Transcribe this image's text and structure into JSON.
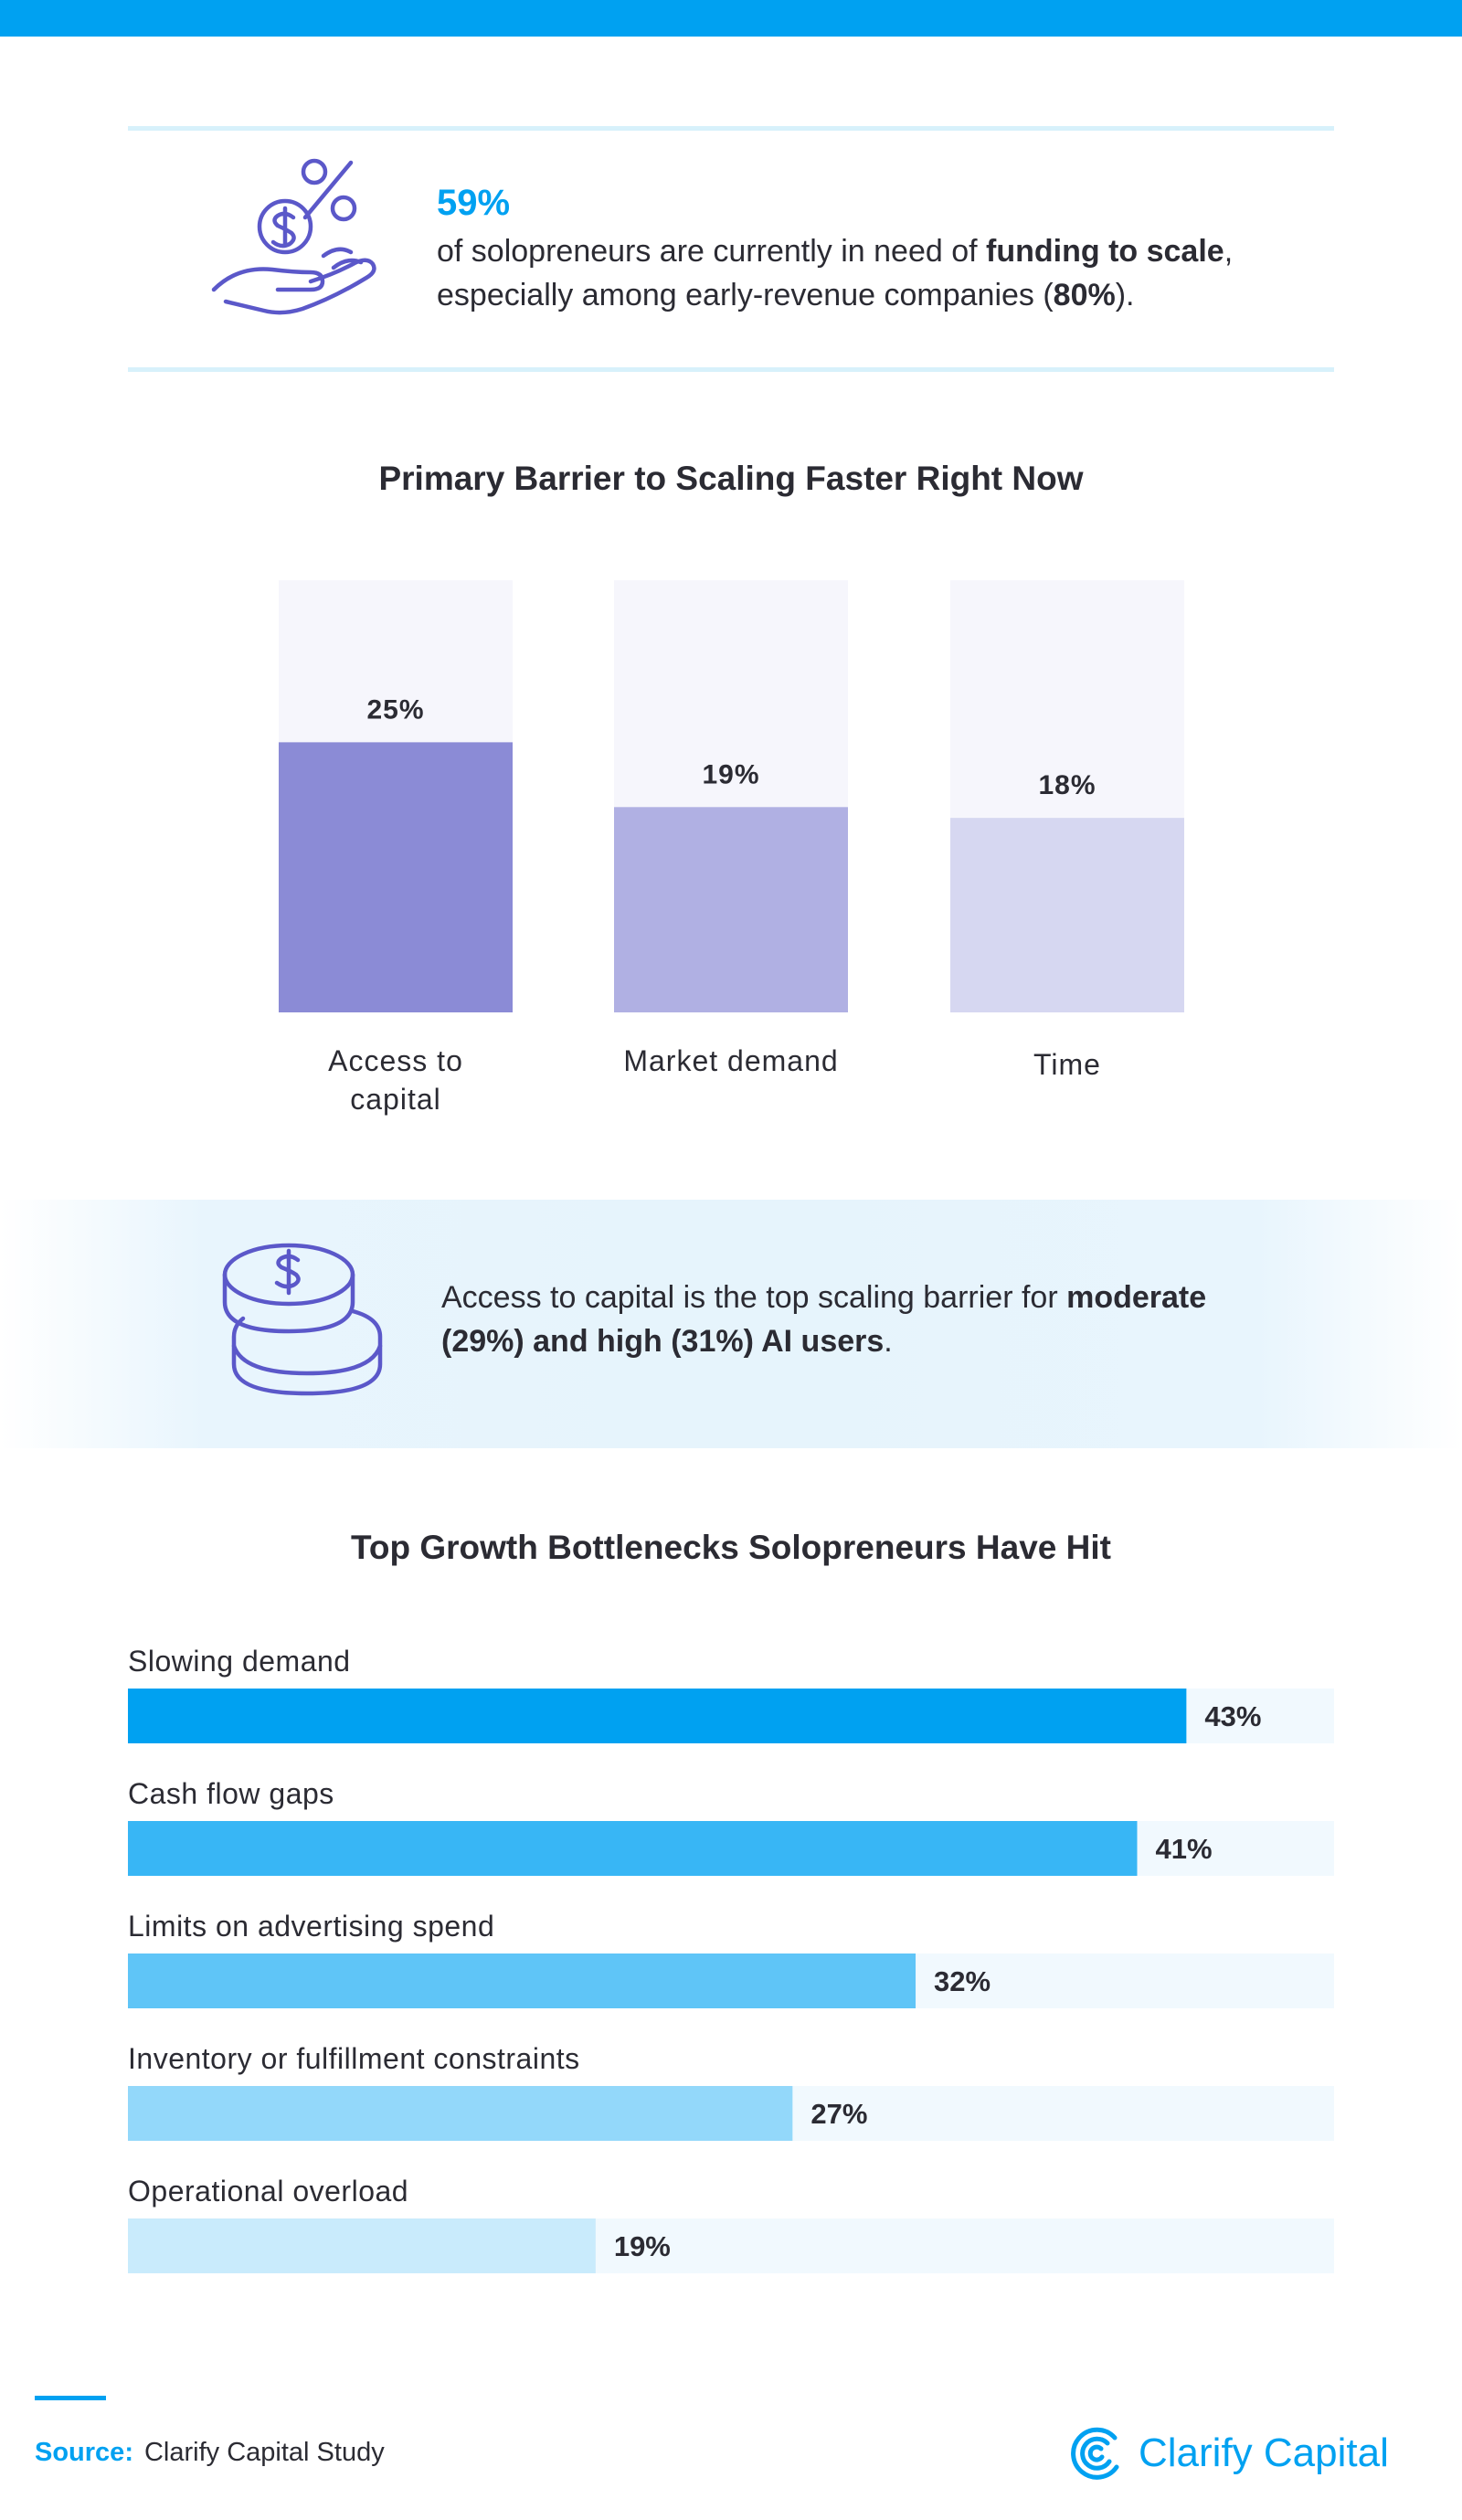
{
  "stat": {
    "percent": "59%",
    "text_plain_1": "of solopreneurs are currently in need of ",
    "text_bold_1": "funding to scale",
    "text_plain_2": ", especially among early-revenue companies (",
    "text_bold_2": "80%",
    "text_plain_3": ")."
  },
  "callout": {
    "text_plain_1": "Access to capital is the top scaling barrier for ",
    "text_bold_1": "moderate (29%) and high (31%) AI users",
    "text_plain_2": "."
  },
  "chart_data": [
    {
      "type": "bar",
      "orientation": "vertical",
      "title": "Primary Barrier to Scaling Faster Right Now",
      "categories": [
        "Access to capital",
        "Market demand",
        "Time"
      ],
      "category_lines": [
        [
          "Access to",
          "capital"
        ],
        [
          "Market demand"
        ],
        [
          "Time"
        ]
      ],
      "values": [
        25,
        19,
        18
      ],
      "value_labels": [
        "25%",
        "19%",
        "18%"
      ],
      "colors": [
        "#8b8bd6",
        "#b0b0e3",
        "#d6d7f1"
      ],
      "track_color": "#f6f6fc",
      "ylim": [
        0,
        40
      ]
    },
    {
      "type": "bar",
      "orientation": "horizontal",
      "title": "Top Growth Bottlenecks Solopreneurs Have Hit",
      "categories": [
        "Slowing demand",
        "Cash flow gaps",
        "Limits on advertising spend",
        "Inventory or fulfillment constraints",
        "Operational overload"
      ],
      "values": [
        43,
        41,
        32,
        27,
        19
      ],
      "value_labels": [
        "43%",
        "41%",
        "32%",
        "27%",
        "19%"
      ],
      "colors": [
        "#00a1f1",
        "#38b6f5",
        "#5fc5f7",
        "#93d8fa",
        "#c9ebfc"
      ],
      "track_color": "#f1f9fe",
      "xlim": [
        0,
        49
      ]
    }
  ],
  "footer": {
    "source_label": "Source:",
    "source_text": "Clarify Capital Study",
    "brand": "Clarify Capital",
    "brand_color": "#00a1f1"
  },
  "icons": [
    "hand-money-icon",
    "coin-stack-icon",
    "clarify-logo-icon"
  ]
}
